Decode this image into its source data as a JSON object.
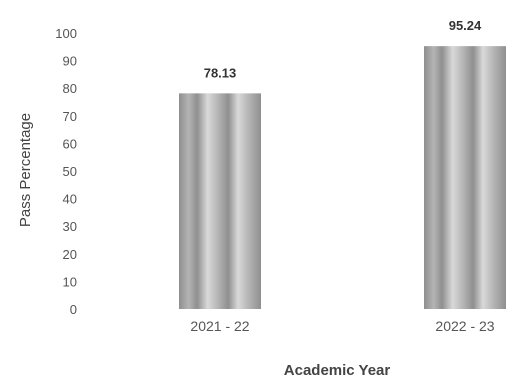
{
  "chart_data": {
    "type": "bar",
    "title": "",
    "xlabel": "Academic Year",
    "ylabel": "Pass Percentage",
    "categories": [
      "2021 - 22",
      "2022 - 23"
    ],
    "values": [
      78.13,
      95.24
    ],
    "data_labels": [
      "78.13",
      "95.24"
    ],
    "ylim": [
      0,
      100
    ],
    "yticks": [
      0,
      10,
      20,
      30,
      40,
      50,
      60,
      70,
      80,
      90,
      100
    ],
    "grid": false,
    "legend": "none"
  },
  "colors": {
    "bar_dark": "#8f8f8f",
    "bar_mid": "#b4b4b4",
    "bar_light": "#d9d9d9",
    "text": "#555555",
    "axis_title": "#444444"
  }
}
